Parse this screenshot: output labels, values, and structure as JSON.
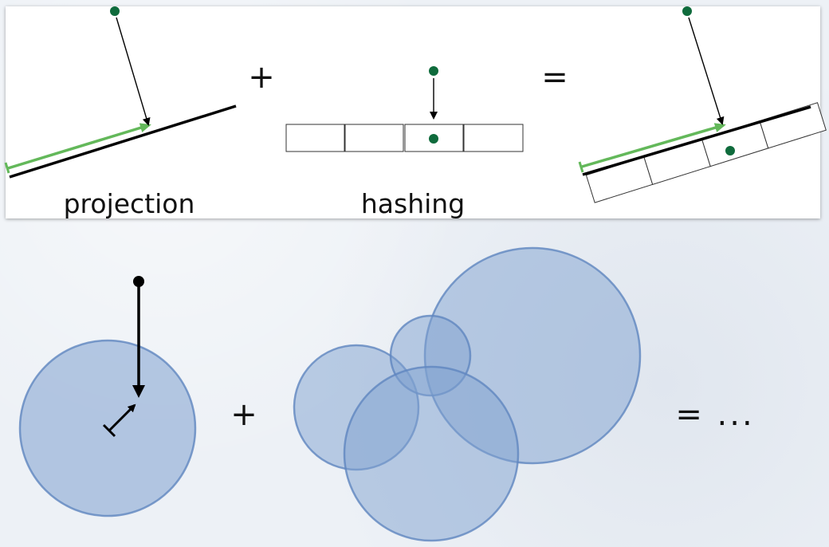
{
  "top_panel": {
    "projection_label": "projection",
    "hashing_label": "hashing",
    "plus_operator": "+",
    "equals_operator": "="
  },
  "bottom": {
    "plus_operator": "+",
    "result_text": "= ..."
  },
  "colors": {
    "point": "#0f6b3c",
    "projection_arrow": "#63b85a",
    "circle_fill": "#7fa1d0",
    "circle_stroke": "#5f86bf",
    "line": "#000000"
  }
}
